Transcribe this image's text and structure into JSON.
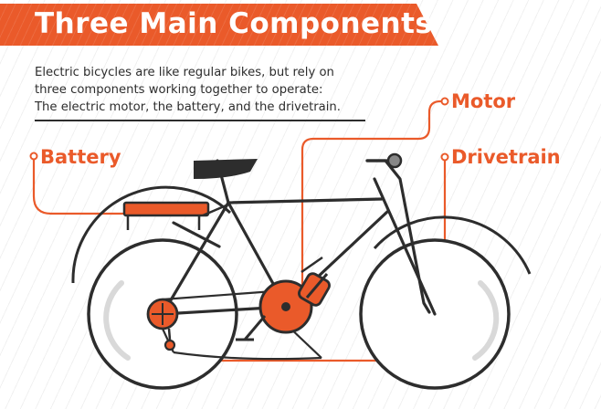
{
  "title": "Three Main Components",
  "intro": {
    "line1": "Electric bicycles are like regular bikes, but rely on",
    "line2": "three components working together to operate:",
    "line3": "The electric motor, the battery, and the drivetrain."
  },
  "labels": {
    "motor": "Motor",
    "battery": "Battery",
    "drivetrain": "Drivetrain"
  },
  "colors": {
    "accent": "#ea5a2a",
    "dark": "#2d2d2d",
    "tire_highlight": "#d9d9d9"
  }
}
